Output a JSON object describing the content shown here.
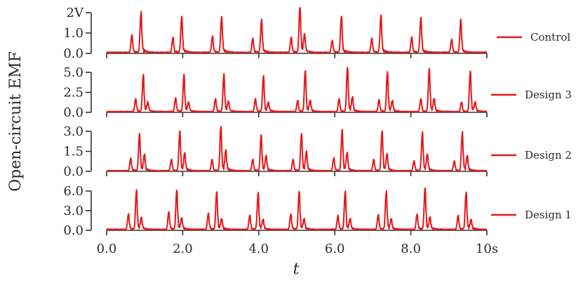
{
  "chart_data": {
    "type": "line",
    "ylabel": "Open-circuit EMF",
    "xlabel": "t",
    "xlim": [
      0,
      10
    ],
    "x_ticks": [
      "0.0",
      "2.0",
      "4.0",
      "6.0",
      "8.0",
      "10s"
    ],
    "line_color": "#e41a1c",
    "grid": false,
    "legend_placement": "right of each panel",
    "panels": [
      {
        "name": "Control",
        "ylim": [
          0,
          2.0
        ],
        "y_ticks": [
          "0.0",
          "1.0",
          "2V"
        ],
        "baseline": 0.05,
        "pulses": [
          {
            "t": 0.66,
            "v": 0.8
          },
          {
            "t": 0.9,
            "v": 1.85
          },
          {
            "t": 1.74,
            "v": 0.7
          },
          {
            "t": 1.97,
            "v": 1.65
          },
          {
            "t": 2.78,
            "v": 0.75
          },
          {
            "t": 3.02,
            "v": 1.65
          },
          {
            "t": 3.84,
            "v": 0.65
          },
          {
            "t": 4.07,
            "v": 1.5
          },
          {
            "t": 4.85,
            "v": 0.7
          },
          {
            "t": 5.08,
            "v": 2.15
          },
          {
            "t": 5.2,
            "v": 0.8
          },
          {
            "t": 5.93,
            "v": 0.55
          },
          {
            "t": 6.17,
            "v": 1.65
          },
          {
            "t": 6.97,
            "v": 0.65
          },
          {
            "t": 7.21,
            "v": 1.7
          },
          {
            "t": 8.02,
            "v": 0.7
          },
          {
            "t": 8.26,
            "v": 1.6
          },
          {
            "t": 9.07,
            "v": 0.6
          },
          {
            "t": 9.31,
            "v": 1.5
          }
        ]
      },
      {
        "name": "Design 3",
        "ylim": [
          0,
          5.0
        ],
        "y_ticks": [
          "0.0",
          "2.5",
          "5.0"
        ],
        "baseline": 0.1,
        "pulses": [
          {
            "t": 0.76,
            "v": 1.5
          },
          {
            "t": 0.96,
            "v": 4.3
          },
          {
            "t": 1.08,
            "v": 1.0
          },
          {
            "t": 1.81,
            "v": 1.6
          },
          {
            "t": 2.03,
            "v": 4.3
          },
          {
            "t": 2.15,
            "v": 1.0
          },
          {
            "t": 2.86,
            "v": 1.5
          },
          {
            "t": 3.08,
            "v": 4.4
          },
          {
            "t": 3.2,
            "v": 1.1
          },
          {
            "t": 3.91,
            "v": 1.5
          },
          {
            "t": 4.12,
            "v": 4.2
          },
          {
            "t": 4.25,
            "v": 1.0
          },
          {
            "t": 5.02,
            "v": 1.3
          },
          {
            "t": 5.22,
            "v": 4.8
          },
          {
            "t": 5.35,
            "v": 1.2
          },
          {
            "t": 6.11,
            "v": 1.5
          },
          {
            "t": 6.33,
            "v": 5.2
          },
          {
            "t": 6.46,
            "v": 1.6
          },
          {
            "t": 7.16,
            "v": 1.4
          },
          {
            "t": 7.38,
            "v": 4.6
          },
          {
            "t": 7.51,
            "v": 1.2
          },
          {
            "t": 8.26,
            "v": 1.5
          },
          {
            "t": 8.48,
            "v": 5.0
          },
          {
            "t": 8.61,
            "v": 1.4
          },
          {
            "t": 9.33,
            "v": 1.1
          },
          {
            "t": 9.56,
            "v": 4.7
          },
          {
            "t": 9.69,
            "v": 1.0
          }
        ]
      },
      {
        "name": "Design 2",
        "ylim": [
          0,
          3.0
        ],
        "y_ticks": [
          "0.0",
          "1.5",
          "3.0"
        ],
        "baseline": 0.05,
        "pulses": [
          {
            "t": 0.63,
            "v": 0.9
          },
          {
            "t": 0.86,
            "v": 2.6
          },
          {
            "t": 0.99,
            "v": 1.1
          },
          {
            "t": 1.7,
            "v": 0.8
          },
          {
            "t": 1.92,
            "v": 2.8
          },
          {
            "t": 2.05,
            "v": 1.2
          },
          {
            "t": 2.77,
            "v": 0.8
          },
          {
            "t": 3.0,
            "v": 3.2
          },
          {
            "t": 3.13,
            "v": 1.4
          },
          {
            "t": 3.84,
            "v": 0.8
          },
          {
            "t": 4.06,
            "v": 2.5
          },
          {
            "t": 4.19,
            "v": 1.0
          },
          {
            "t": 4.9,
            "v": 0.8
          },
          {
            "t": 5.12,
            "v": 2.6
          },
          {
            "t": 5.25,
            "v": 1.3
          },
          {
            "t": 5.97,
            "v": 0.9
          },
          {
            "t": 6.19,
            "v": 2.9
          },
          {
            "t": 6.32,
            "v": 1.2
          },
          {
            "t": 7.02,
            "v": 0.8
          },
          {
            "t": 7.24,
            "v": 2.8
          },
          {
            "t": 7.37,
            "v": 1.1
          },
          {
            "t": 8.08,
            "v": 0.7
          },
          {
            "t": 8.3,
            "v": 2.7
          },
          {
            "t": 8.43,
            "v": 1.1
          },
          {
            "t": 9.14,
            "v": 0.7
          },
          {
            "t": 9.35,
            "v": 2.7
          },
          {
            "t": 9.48,
            "v": 1.0
          }
        ]
      },
      {
        "name": "Design 1",
        "ylim": [
          0,
          6.0
        ],
        "y_ticks": [
          "0.0",
          "3.0",
          "6.0"
        ],
        "baseline": 0.15,
        "pulses": [
          {
            "t": 0.57,
            "v": 2.2
          },
          {
            "t": 0.78,
            "v": 5.6
          },
          {
            "t": 0.91,
            "v": 1.6
          },
          {
            "t": 1.63,
            "v": 2.5
          },
          {
            "t": 1.84,
            "v": 5.6
          },
          {
            "t": 1.97,
            "v": 1.5
          },
          {
            "t": 2.67,
            "v": 2.3
          },
          {
            "t": 2.89,
            "v": 5.4
          },
          {
            "t": 3.02,
            "v": 1.4
          },
          {
            "t": 3.76,
            "v": 2.0
          },
          {
            "t": 3.98,
            "v": 5.2
          },
          {
            "t": 4.11,
            "v": 1.3
          },
          {
            "t": 4.84,
            "v": 2.2
          },
          {
            "t": 5.06,
            "v": 5.4
          },
          {
            "t": 5.19,
            "v": 1.4
          },
          {
            "t": 6.08,
            "v": 2.0
          },
          {
            "t": 6.27,
            "v": 5.4
          },
          {
            "t": 6.4,
            "v": 1.4
          },
          {
            "t": 7.14,
            "v": 2.1
          },
          {
            "t": 7.35,
            "v": 5.4
          },
          {
            "t": 7.48,
            "v": 1.4
          },
          {
            "t": 8.16,
            "v": 2.2
          },
          {
            "t": 8.37,
            "v": 5.9
          },
          {
            "t": 8.5,
            "v": 1.6
          },
          {
            "t": 9.24,
            "v": 2.0
          },
          {
            "t": 9.45,
            "v": 5.3
          },
          {
            "t": 9.58,
            "v": 1.3
          }
        ]
      }
    ]
  }
}
